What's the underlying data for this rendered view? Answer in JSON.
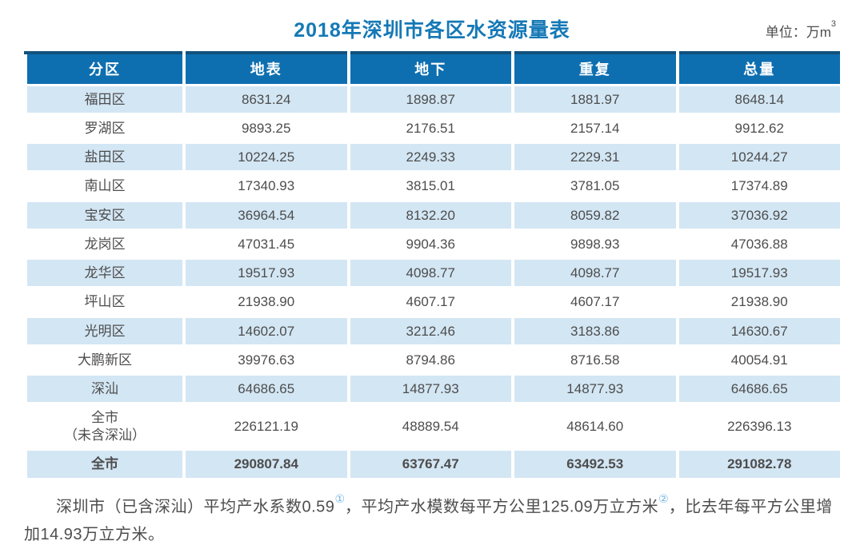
{
  "page": {
    "title": "2018年深圳市各区水资源量表",
    "unit": {
      "text": "单位：万m",
      "sup": "3"
    }
  },
  "colors": {
    "title_blue": "#1579b6",
    "header_bg": "#0e6fb0",
    "header_top_border": "#12517c",
    "row_stripe": "#d3e6f4",
    "text_dark": "#4d4d4d",
    "footnote_sup_blue": "#6fb3e0"
  },
  "table": {
    "columns": [
      "分区",
      "地表",
      "地下",
      "重复",
      "总量"
    ],
    "rows": [
      {
        "name": "福田区",
        "values": [
          "8631.24",
          "1898.87",
          "1881.97",
          "8648.14"
        ]
      },
      {
        "name": "罗湖区",
        "values": [
          "9893.25",
          "2176.51",
          "2157.14",
          "9912.62"
        ]
      },
      {
        "name": "盐田区",
        "values": [
          "10224.25",
          "2249.33",
          "2229.31",
          "10244.27"
        ]
      },
      {
        "name": "南山区",
        "values": [
          "17340.93",
          "3815.01",
          "3781.05",
          "17374.89"
        ]
      },
      {
        "name": "宝安区",
        "values": [
          "36964.54",
          "8132.20",
          "8059.82",
          "37036.92"
        ]
      },
      {
        "name": "龙岗区",
        "values": [
          "47031.45",
          "9904.36",
          "9898.93",
          "47036.88"
        ]
      },
      {
        "name": "龙华区",
        "values": [
          "19517.93",
          "4098.77",
          "4098.77",
          "19517.93"
        ]
      },
      {
        "name": "坪山区",
        "values": [
          "21938.90",
          "4607.17",
          "4607.17",
          "21938.90"
        ]
      },
      {
        "name": "光明区",
        "values": [
          "14602.07",
          "3212.46",
          "3183.86",
          "14630.67"
        ]
      },
      {
        "name": "大鹏新区",
        "values": [
          "39976.63",
          "8794.86",
          "8716.58",
          "40054.91"
        ]
      },
      {
        "name": "深汕",
        "values": [
          "64686.65",
          "14877.93",
          "14877.93",
          "64686.65"
        ]
      },
      {
        "name": "全市\n（未含深汕）",
        "values": [
          "226121.19",
          "48889.54",
          "48614.60",
          "226396.13"
        ]
      },
      {
        "name": "全市",
        "values": [
          "290807.84",
          "63767.47",
          "63492.53",
          "291082.78"
        ],
        "emphasis": true
      }
    ]
  },
  "footnote": {
    "part1": "深圳市（已含深汕）平均产水系数0.59",
    "sup1": "①",
    "part2": "，平均产水模数每平方公里125.09万立方米",
    "sup2": "②",
    "part3": "，比去年每平方公里增加14.93万立方米。"
  }
}
